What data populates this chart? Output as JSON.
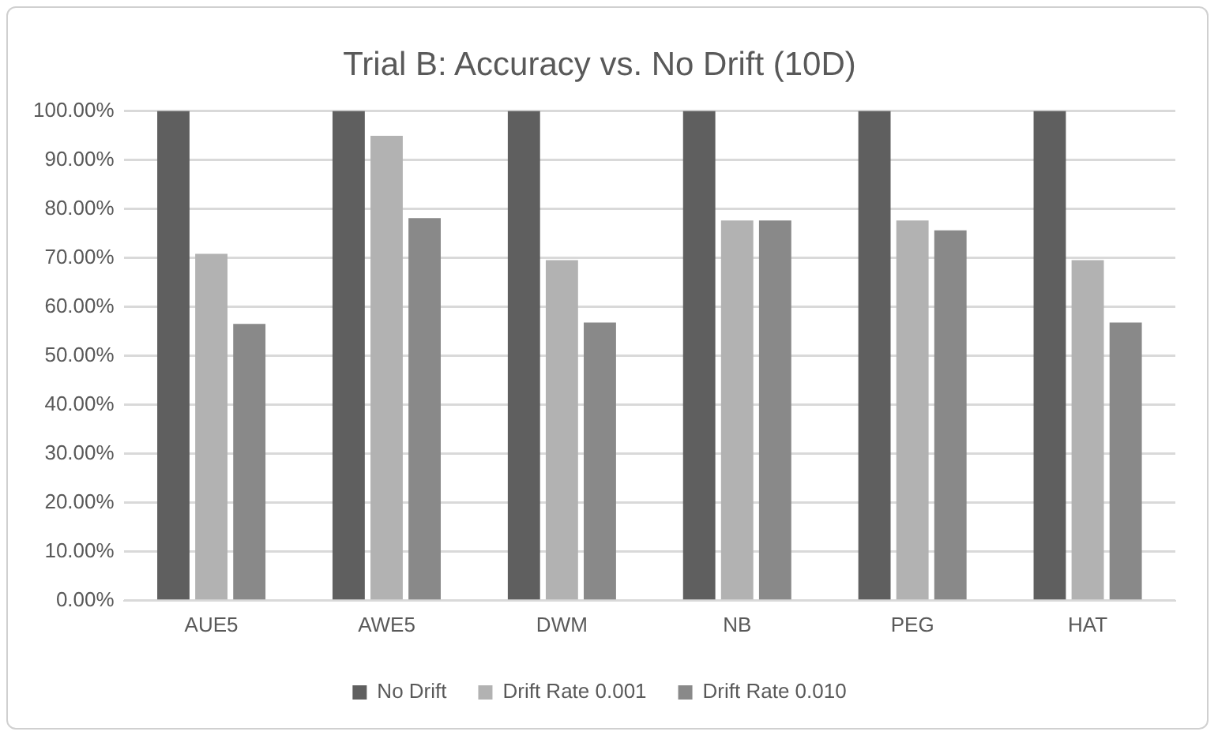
{
  "chart_data": {
    "type": "bar",
    "title": "Trial B: Accuracy vs. No Drift (10D)",
    "categories": [
      "AUE5",
      "AWE5",
      "DWM",
      "NB",
      "PEG",
      "HAT"
    ],
    "series": [
      {
        "name": "No Drift",
        "color": "#5f5f5f",
        "values": [
          100,
          100,
          100,
          100,
          100,
          100
        ]
      },
      {
        "name": "Drift Rate 0.001",
        "color": "#b2b2b2",
        "values": [
          70.8,
          94.9,
          69.5,
          77.6,
          77.6,
          69.5
        ]
      },
      {
        "name": "Drift Rate 0.010",
        "color": "#898989",
        "values": [
          56.5,
          78.1,
          56.8,
          77.6,
          75.6,
          56.8
        ]
      }
    ],
    "ylim": [
      0,
      100
    ],
    "yticks": [
      {
        "value": 0,
        "label": "0.00%"
      },
      {
        "value": 10,
        "label": "10.00%"
      },
      {
        "value": 20,
        "label": "20.00%"
      },
      {
        "value": 30,
        "label": "30.00%"
      },
      {
        "value": 40,
        "label": "40.00%"
      },
      {
        "value": 50,
        "label": "50.00%"
      },
      {
        "value": 60,
        "label": "60.00%"
      },
      {
        "value": 70,
        "label": "70.00%"
      },
      {
        "value": 80,
        "label": "80.00%"
      },
      {
        "value": 90,
        "label": "90.00%"
      },
      {
        "value": 100,
        "label": "100.00%"
      }
    ],
    "grid": "y",
    "legend": "bottom"
  }
}
